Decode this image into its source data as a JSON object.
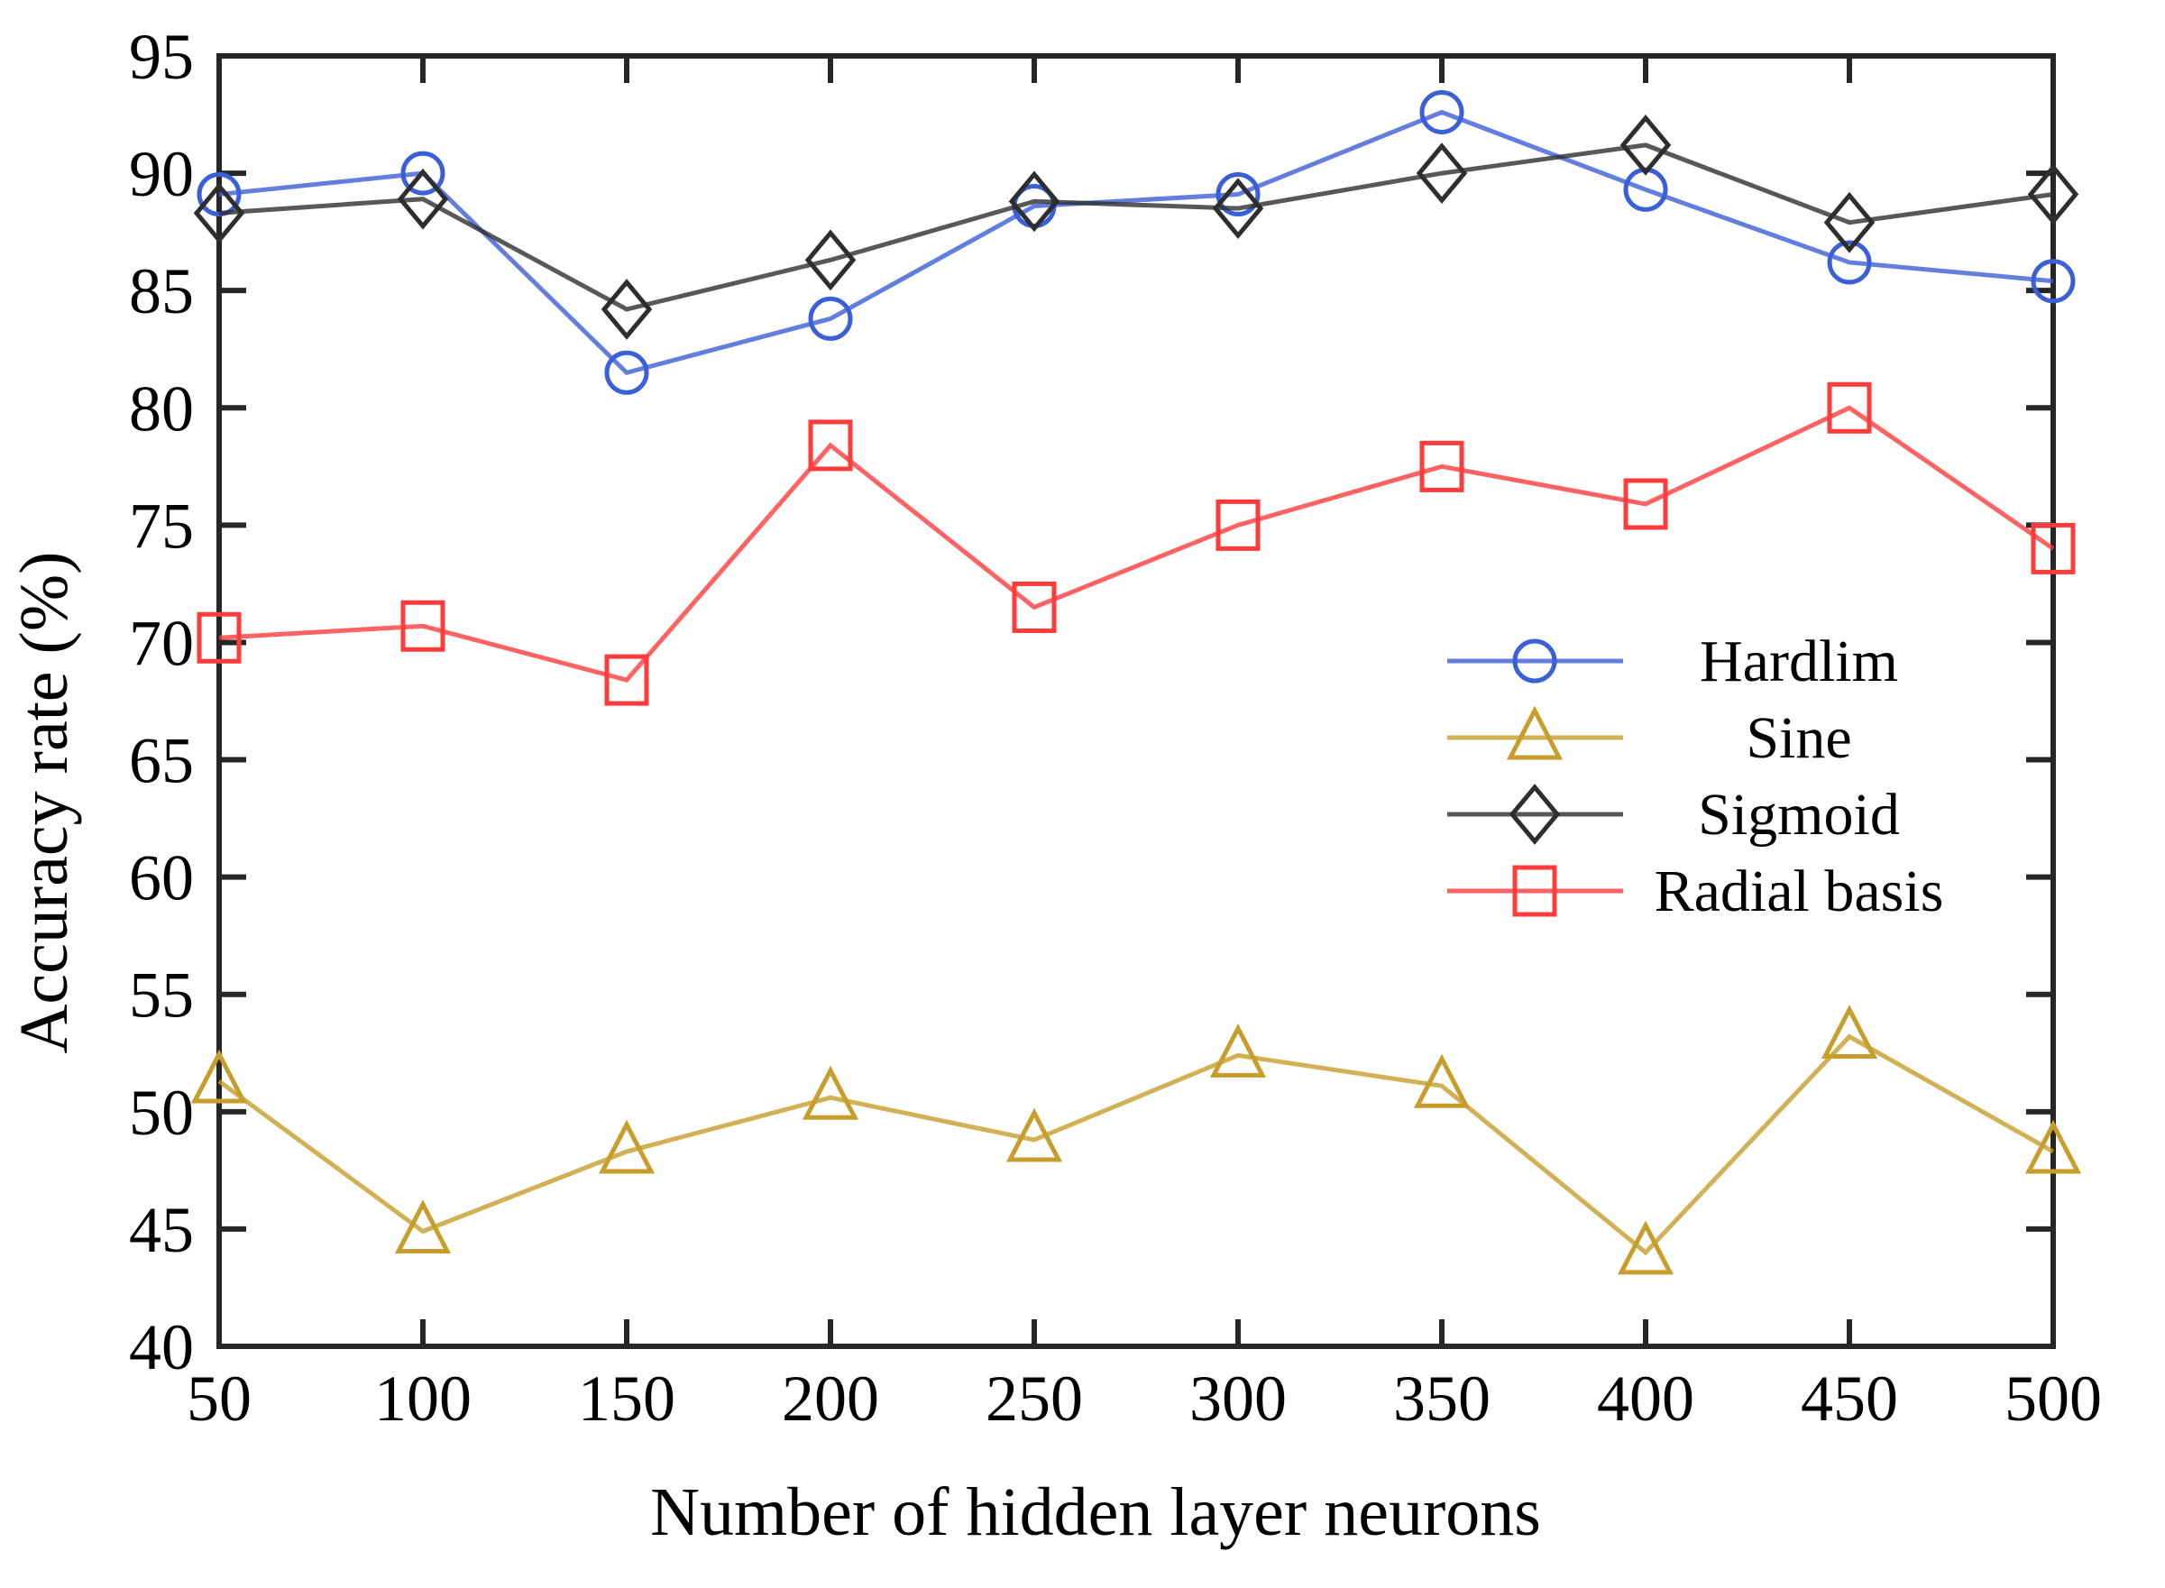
{
  "figure": {
    "x_axis_title": "Number of hidden layer neurons",
    "y_axis_title": "Accuracy rate (%)"
  },
  "chart_data": {
    "type": "line",
    "title": "",
    "xlabel": "Number of hidden layer neurons",
    "ylabel": "Accuracy rate (%)",
    "x": [
      50,
      100,
      150,
      200,
      250,
      300,
      350,
      400,
      450,
      500
    ],
    "series": [
      {
        "name": "Hardlim",
        "marker": "circle",
        "color": "#3b5fd6",
        "values": [
          89.1,
          90.0,
          81.5,
          83.8,
          88.6,
          89.1,
          92.6,
          89.3,
          86.2,
          85.4
        ]
      },
      {
        "name": "Sine",
        "marker": "triangle",
        "color": "#c79d2c",
        "values": [
          51.3,
          44.9,
          48.3,
          50.6,
          48.8,
          52.4,
          51.1,
          44.0,
          53.2,
          48.3
        ]
      },
      {
        "name": "Sigmoid",
        "marker": "diamond",
        "color": "#2e2e2e",
        "values": [
          88.3,
          88.9,
          84.2,
          86.3,
          88.8,
          88.5,
          90.0,
          91.2,
          87.9,
          89.1
        ]
      },
      {
        "name": "Radial basis",
        "marker": "square",
        "color": "#ff3b3b",
        "values": [
          70.2,
          70.7,
          68.4,
          78.4,
          71.5,
          75.0,
          77.5,
          75.9,
          80.0,
          74.0
        ]
      }
    ],
    "xlim": [
      50,
      500
    ],
    "ylim": [
      40,
      95
    ],
    "xticks": [
      50,
      100,
      150,
      200,
      250,
      300,
      350,
      400,
      450,
      500
    ],
    "yticks": [
      40,
      45,
      50,
      55,
      60,
      65,
      70,
      75,
      80,
      85,
      90,
      95
    ],
    "grid": false,
    "legend": {
      "position": "right-middle",
      "entries": [
        "Hardlim",
        "Sine",
        "Sigmoid",
        "Radial basis"
      ]
    }
  }
}
